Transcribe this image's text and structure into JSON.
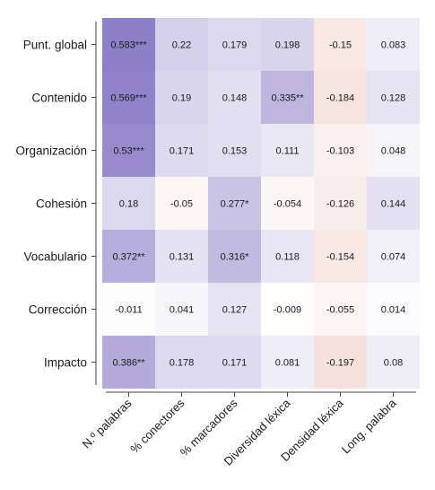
{
  "chart_data": {
    "type": "heatmap",
    "rows": [
      "Punt. global",
      "Contenido",
      "Organización",
      "Cohesión",
      "Vocabulario",
      "Corrección",
      "Impacto"
    ],
    "columns": [
      "N.º palabras",
      "% conectores",
      "% marcadores",
      "Diversidad léxica",
      "Densidad léxica",
      "Long. palabra"
    ],
    "values": [
      [
        0.583,
        0.22,
        0.179,
        0.198,
        -0.15,
        0.083
      ],
      [
        0.569,
        0.19,
        0.148,
        0.335,
        -0.184,
        0.128
      ],
      [
        0.53,
        0.171,
        0.153,
        0.111,
        -0.103,
        0.048
      ],
      [
        0.18,
        -0.05,
        0.277,
        -0.054,
        -0.126,
        0.144
      ],
      [
        0.372,
        0.131,
        0.316,
        0.118,
        -0.154,
        0.074
      ],
      [
        -0.011,
        0.041,
        0.127,
        -0.009,
        -0.055,
        0.014
      ],
      [
        0.386,
        0.178,
        0.171,
        0.081,
        -0.197,
        0.08
      ]
    ],
    "labels": [
      [
        "0.583***",
        "0.22",
        "0.179",
        "0.198",
        "-0.15",
        "0.083"
      ],
      [
        "0.569***",
        "0.19",
        "0.148",
        "0.335**",
        "-0.184",
        "0.128"
      ],
      [
        "0.53***",
        "0.171",
        "0.153",
        "0.111",
        "-0.103",
        "0.048"
      ],
      [
        "0.18",
        "-0.05",
        "0.277*",
        "-0.054",
        "-0.126",
        "0.144"
      ],
      [
        "0.372**",
        "0.131",
        "0.316*",
        "0.118",
        "-0.154",
        "0.074"
      ],
      [
        "-0.011",
        "0.041",
        "0.127",
        "-0.009",
        "-0.055",
        "0.014"
      ],
      [
        "0.386**",
        "0.178",
        "0.171",
        "0.081",
        "-0.197",
        "0.08"
      ]
    ],
    "colors": {
      "positive": "#8a7cc6",
      "negative": "#e3a898",
      "neutral": "#ffffff",
      "text": "#1a1a1a",
      "axis": "#444444"
    },
    "grid": false,
    "legend": "none"
  }
}
